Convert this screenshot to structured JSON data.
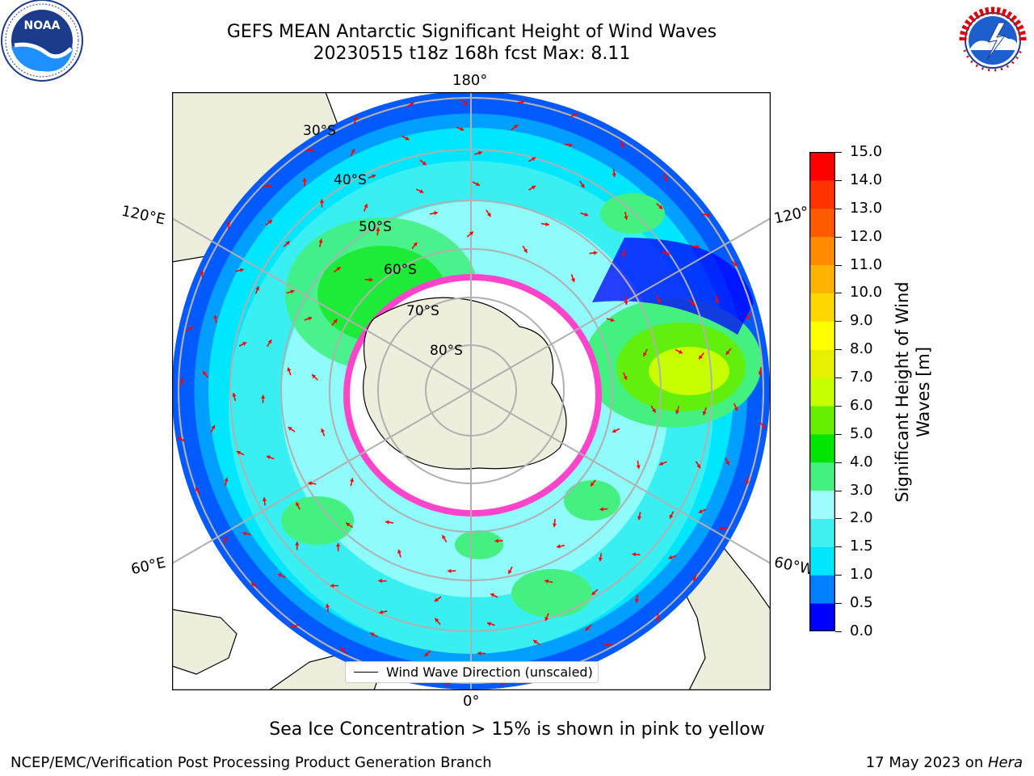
{
  "title": {
    "line1": "GEFS MEAN Antarctic Significant Height of Wind Waves",
    "line2": "20230515 t18z 168h fcst   Max: 8.11"
  },
  "logos": {
    "left": "noaa-logo",
    "right": "nws-logo"
  },
  "map": {
    "projection": "south-polar-stereographic",
    "longitude_labels": {
      "top": "180°",
      "bottom": "0°",
      "left_upper": "120°E",
      "left_lower": "60°E",
      "right_upper": "120°",
      "right_lower": "60°W"
    },
    "latitude_labels": [
      "30°S",
      "40°S",
      "50°S",
      "60°S",
      "70°S",
      "80°S"
    ],
    "colors": {
      "land": "#eeeedd",
      "ocean_low": "#0000ff",
      "ocean_mid": "#00e6ff",
      "ocean_high": "#c8ff00",
      "ice": "#ff44cc",
      "arrow": "#ff0000",
      "grid": "#b0b0b0"
    }
  },
  "legend": {
    "label": "Wind Wave Direction (unscaled)"
  },
  "colorbar": {
    "title_line1": "Significant Height of Wind",
    "title_line2": "Waves [m]",
    "ticks": [
      "0.0",
      "0.5",
      "1.0",
      "1.5",
      "2.0",
      "3.0",
      "4.0",
      "5.0",
      "6.0",
      "7.0",
      "8.0",
      "9.0",
      "10.0",
      "11.0",
      "12.0",
      "13.0",
      "14.0",
      "15.0"
    ],
    "colors": [
      "#0000ff",
      "#0080ff",
      "#00e6ff",
      "#40f0f0",
      "#a0fdfd",
      "#44f080",
      "#00e600",
      "#66ee00",
      "#c8ff00",
      "#e6f000",
      "#ffff00",
      "#ffd700",
      "#ffb300",
      "#ff8c00",
      "#ff5a00",
      "#ff3200",
      "#ff0000"
    ]
  },
  "notes": {
    "ice": "Sea Ice Concentration > 15% is shown in pink to yellow"
  },
  "footer": {
    "left": "NCEP/EMC/Verification Post Processing Product Generation Branch",
    "date": "17 May 2023 on ",
    "machine": "Hera"
  }
}
